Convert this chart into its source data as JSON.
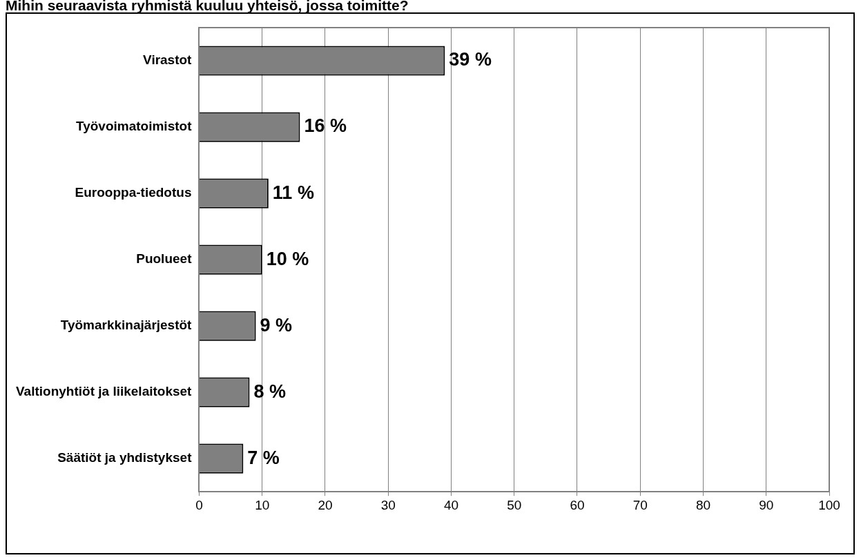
{
  "chart_data": {
    "type": "bar",
    "orientation": "horizontal",
    "title": "Mihin seuraavista ryhmistä kuuluu yhteisö, jossa toimitte?",
    "categories": [
      "Virastot",
      "Työvoimatoimistot",
      "Eurooppa-tiedotus",
      "Puolueet",
      "Työmarkkinajärjestöt",
      "Valtionyhtiöt ja liikelaitokset",
      "Säätiöt ja yhdistykset"
    ],
    "values": [
      39,
      16,
      11,
      10,
      9,
      8,
      7
    ],
    "value_labels": [
      "39 %",
      "16 %",
      "11 %",
      "10 %",
      "9 %",
      "8 %",
      "7 %"
    ],
    "color": "#808080",
    "xlim": [
      0,
      100
    ],
    "xticks": [
      0,
      10,
      20,
      30,
      40,
      50,
      60,
      70,
      80,
      90,
      100
    ],
    "grid": "x",
    "legend": false
  }
}
